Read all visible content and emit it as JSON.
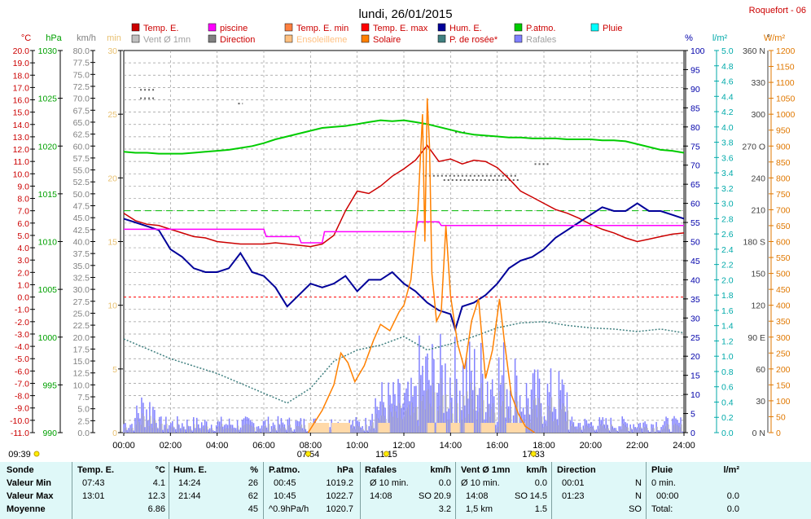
{
  "station": "Roquefort - 06",
  "chart_data": {
    "type": "line",
    "title": "lundi, 26/01/2015",
    "x_ticks": [
      "00:00",
      "02:00",
      "04:00",
      "06:00",
      "08:00",
      "10:00",
      "12:00",
      "14:00",
      "16:00",
      "18:00",
      "20:00",
      "22:00",
      "24:00"
    ],
    "time_markers": [
      {
        "label": "09:39",
        "hour": 0
      },
      {
        "label": "07:54",
        "hour": 7.9
      },
      {
        "label": "11:15",
        "hour": 11.25
      },
      {
        "label": "17:33",
        "hour": 17.55
      }
    ],
    "axes": {
      "temp": {
        "unit": "°C",
        "min": -11,
        "max": 20,
        "color": "#cc0000"
      },
      "press": {
        "unit": "hPa",
        "min": 990,
        "max": 1030,
        "color": "#00a000"
      },
      "wind": {
        "unit": "km/h",
        "min": 0,
        "max": 80,
        "color": "#808080"
      },
      "sunmin": {
        "unit": "min",
        "min": 0,
        "max": 30,
        "color": "#e8c070"
      },
      "hum": {
        "unit": "%",
        "min": 0,
        "max": 100,
        "color": "#0000aa"
      },
      "rain": {
        "unit": "l/m²",
        "min": 0,
        "max": 5,
        "color": "#00aaaa"
      },
      "dir": {
        "unit": "°",
        "min": 0,
        "max": 360,
        "color": "#404040",
        "ticks": [
          [
            0,
            "0 N"
          ],
          [
            30,
            "30"
          ],
          [
            60,
            "60"
          ],
          [
            90,
            "90 E"
          ],
          [
            120,
            "120"
          ],
          [
            150,
            "150"
          ],
          [
            180,
            "180 S"
          ],
          [
            210,
            "210"
          ],
          [
            240,
            "240"
          ],
          [
            270,
            "270 O"
          ],
          [
            300,
            "300"
          ],
          [
            330,
            "330"
          ],
          [
            360,
            "360 N"
          ]
        ]
      },
      "solar": {
        "unit": "W/m²",
        "min": 0,
        "max": 1200,
        "color": "#e07800"
      }
    },
    "legend": [
      {
        "label": "Temp. E.",
        "color": "#cc0000"
      },
      {
        "label": "piscine",
        "color": "#ff00ff"
      },
      {
        "label": "Temp. E. min",
        "color": "#ff8040"
      },
      {
        "label": "Temp. E. max",
        "color": "#ff0000"
      },
      {
        "label": "Hum. E.",
        "color": "#000099"
      },
      {
        "label": "P.atmo.",
        "color": "#00cc00"
      },
      {
        "label": "Pluie",
        "color": "#00ffff"
      },
      {
        "label": "Vent Ø 1mn",
        "color": "#c0c0c0"
      },
      {
        "label": "Direction",
        "color": "#808080"
      },
      {
        "label": "Ensoleilleme",
        "color": "#ffc080"
      },
      {
        "label": "Solaire",
        "color": "#ff8000"
      },
      {
        "label": "P. de rosée*",
        "color": "#408080"
      },
      {
        "label": "Rafales",
        "color": "#8080ff"
      }
    ],
    "series": [
      {
        "name": "Temp. E.",
        "axis": "temp",
        "color": "#cc0000",
        "x": [
          0,
          0.5,
          1,
          1.5,
          2,
          2.5,
          3,
          3.5,
          4,
          4.5,
          5,
          5.5,
          6,
          6.5,
          7,
          7.5,
          8,
          8.5,
          9,
          9.5,
          10,
          10.5,
          11,
          11.5,
          12,
          12.5,
          13,
          13.5,
          14,
          14.5,
          15,
          15.5,
          16,
          16.5,
          17,
          17.5,
          18,
          18.5,
          19,
          19.5,
          20,
          20.5,
          21,
          21.5,
          22,
          22.5,
          23,
          23.5,
          24
        ],
        "y": [
          6.8,
          6.2,
          5.9,
          5.8,
          5.5,
          5.2,
          4.9,
          4.8,
          4.5,
          4.4,
          4.3,
          4.3,
          4.3,
          4.4,
          4.3,
          4.2,
          4.1,
          4.3,
          5.0,
          7.0,
          8.6,
          8.4,
          9.0,
          9.8,
          10.4,
          11.1,
          12.3,
          11.0,
          11.2,
          10.8,
          11.1,
          11.0,
          10.5,
          9.6,
          8.6,
          8.1,
          7.6,
          7.1,
          6.8,
          6.4,
          5.9,
          5.5,
          5.2,
          4.8,
          4.5,
          4.7,
          4.9,
          5.1,
          5.2
        ]
      },
      {
        "name": "Hum. E.",
        "axis": "hum",
        "color": "#000099",
        "x": [
          0,
          0.5,
          1,
          1.5,
          2,
          2.5,
          3,
          3.5,
          4,
          4.5,
          5,
          5.5,
          6,
          6.5,
          7,
          7.5,
          8,
          8.5,
          9,
          9.5,
          10,
          10.5,
          11,
          11.5,
          12,
          12.5,
          13,
          13.5,
          14,
          14.2,
          14.5,
          15,
          15.5,
          16,
          16.5,
          17,
          17.5,
          18,
          18.5,
          19,
          19.5,
          20,
          20.5,
          21,
          21.5,
          22,
          22.5,
          23,
          23.5,
          24
        ],
        "y": [
          56,
          55,
          54,
          53,
          48,
          46,
          43,
          42,
          42,
          43,
          47,
          42,
          41,
          38,
          33,
          36,
          39,
          38,
          39,
          41,
          37,
          40,
          40,
          42,
          39,
          37,
          34,
          32,
          31,
          27,
          33,
          34,
          36,
          39,
          43,
          45,
          46,
          48,
          51,
          53,
          55,
          57,
          59,
          58,
          58,
          60,
          58,
          58,
          57,
          56
        ]
      },
      {
        "name": "P.atmo.",
        "axis": "press",
        "color": "#00cc00",
        "x": [
          0,
          0.5,
          1,
          1.5,
          2,
          2.5,
          3,
          3.5,
          4,
          4.5,
          5,
          5.5,
          6,
          6.5,
          7,
          7.5,
          8,
          8.5,
          9,
          9.5,
          10,
          10.5,
          11,
          11.5,
          12,
          12.5,
          13,
          13.5,
          14,
          14.5,
          15,
          15.5,
          16,
          16.5,
          17,
          17.5,
          18,
          18.5,
          19,
          19.5,
          20,
          20.5,
          21,
          21.5,
          22,
          22.5,
          23,
          23.5,
          24
        ],
        "y": [
          1019.4,
          1019.3,
          1019.3,
          1019.2,
          1019.2,
          1019.2,
          1019.3,
          1019.4,
          1019.5,
          1019.6,
          1019.8,
          1020.0,
          1020.3,
          1020.7,
          1021.0,
          1021.3,
          1021.6,
          1021.9,
          1022.0,
          1022.1,
          1022.3,
          1022.5,
          1022.7,
          1022.6,
          1022.7,
          1022.5,
          1022.3,
          1022.0,
          1021.7,
          1021.4,
          1021.2,
          1021.1,
          1021.0,
          1020.9,
          1020.9,
          1020.8,
          1020.8,
          1020.8,
          1020.7,
          1020.7,
          1020.7,
          1020.6,
          1020.6,
          1020.5,
          1020.2,
          1019.9,
          1019.6,
          1019.5,
          1019.3
        ]
      },
      {
        "name": "piscine",
        "axis": "temp",
        "color": "#ff00ff",
        "x": [
          0,
          3.2,
          6.0,
          6.1,
          7.5,
          7.6,
          8.5,
          8.6,
          12.5,
          12.6,
          13.5,
          13.6,
          24
        ],
        "y": [
          5.5,
          5.5,
          5.5,
          4.9,
          4.9,
          4.4,
          4.4,
          5.3,
          5.3,
          6.1,
          6.1,
          5.8,
          5.8
        ]
      },
      {
        "name": "P. de rosée*",
        "axis": "temp",
        "color": "#408080",
        "x": [
          0,
          1,
          2,
          3,
          4,
          5,
          6,
          7,
          8,
          9,
          10,
          11,
          12,
          13,
          14,
          15,
          16,
          17,
          18,
          19,
          20,
          21,
          22,
          23,
          24
        ],
        "y": [
          -3.4,
          -4.2,
          -5.0,
          -5.6,
          -6.2,
          -7.0,
          -7.8,
          -8.6,
          -7.4,
          -5.2,
          -4.3,
          -3.9,
          -3.2,
          -4.3,
          -3.8,
          -3.2,
          -2.5,
          -2.1,
          -2.0,
          -2.3,
          -2.5,
          -2.6,
          -2.8,
          -2.6,
          -2.9
        ]
      },
      {
        "name": "Solaire",
        "axis": "solar",
        "color": "#ff8000",
        "x": [
          7.9,
          8.5,
          9,
          9.3,
          9.6,
          9.9,
          10.3,
          10.7,
          11,
          11.4,
          11.8,
          12,
          12.3,
          12.6,
          12.8,
          12.9,
          13.0,
          13.1,
          13.2,
          13.4,
          13.6,
          13.8,
          14,
          14.3,
          14.6,
          14.9,
          15.2,
          15.5,
          15.8,
          16.1,
          16.3,
          16.6,
          16.9,
          17.2,
          17.5,
          17.6
        ],
        "y": [
          0,
          70,
          150,
          250,
          220,
          160,
          210,
          290,
          340,
          320,
          380,
          400,
          480,
          700,
          1000,
          600,
          1050,
          900,
          500,
          350,
          380,
          650,
          430,
          280,
          200,
          350,
          420,
          170,
          260,
          420,
          290,
          120,
          60,
          20,
          5,
          0
        ]
      }
    ],
    "stats": {
      "headers": {
        "sonde": "Sonde",
        "temp": "Temp. E.",
        "temp_unit": "°C",
        "hum": "Hum. E.",
        "hum_unit": "%",
        "press": "P.atmo.",
        "press_unit": "hPa",
        "gust": "Rafales",
        "gust_unit": "km/h",
        "wind": "Vent Ø 1mn",
        "wind_unit": "km/h",
        "dir": "Direction",
        "rain": "Pluie",
        "rain_unit": "l/m²"
      },
      "row_labels": [
        "Valeur Min",
        "Valeur Max",
        "Moyenne"
      ],
      "temp": [
        [
          "07:43",
          "4.1"
        ],
        [
          "13:01",
          "12.3"
        ],
        [
          "",
          "6.86"
        ]
      ],
      "hum": [
        [
          "14:24",
          "26"
        ],
        [
          "21:44",
          "62"
        ],
        [
          "",
          "45"
        ]
      ],
      "press": [
        [
          "00:45",
          "1019.2"
        ],
        [
          "10:45",
          "1022.7"
        ],
        [
          "^0.9hPa/h",
          "1020.7"
        ]
      ],
      "gust": [
        [
          "Ø 10 min.",
          "",
          "0.0"
        ],
        [
          "14:08",
          "SO",
          "20.9"
        ],
        [
          "",
          "",
          "3.2"
        ]
      ],
      "wind": [
        [
          "Ø 10 min.",
          "",
          "0.0"
        ],
        [
          "14:08",
          "SO",
          "14.5"
        ],
        [
          "1,5 km",
          "",
          "1.5"
        ]
      ],
      "dir": [
        [
          "00:01",
          "N"
        ],
        [
          "01:23",
          "N"
        ],
        [
          "",
          "SO"
        ]
      ],
      "rain": [
        [
          "0 min.",
          ""
        ],
        [
          "00:00",
          "0.0"
        ],
        [
          "Total:",
          "0.0"
        ]
      ]
    }
  }
}
